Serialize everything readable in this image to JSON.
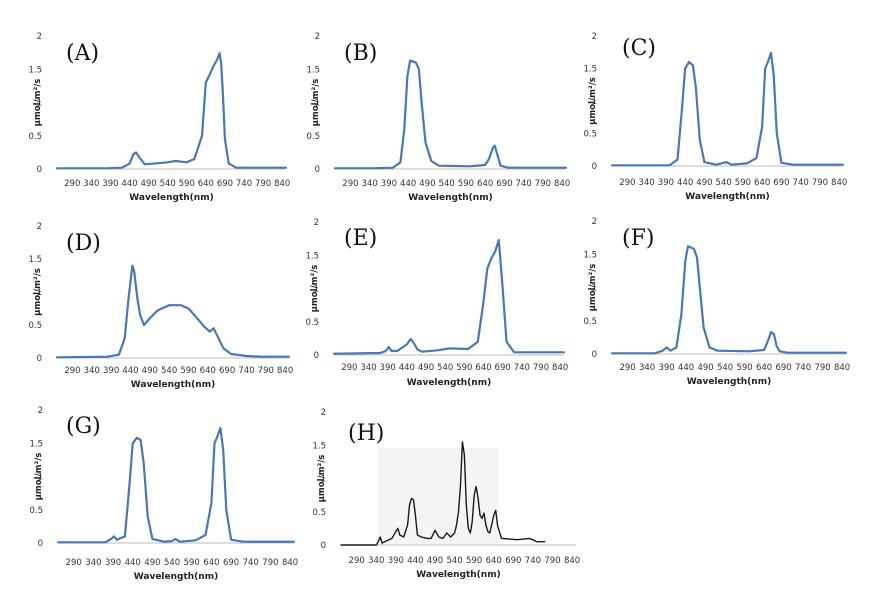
{
  "chart_data": [
    {
      "type": "line",
      "panel_label": "(A)",
      "xlabel": "Wavelength(nm)",
      "ylabel": "μmol/m²/s",
      "xlim": [
        250,
        850
      ],
      "ylim": [
        0,
        2
      ],
      "xticks": [
        290,
        340,
        390,
        440,
        490,
        540,
        590,
        640,
        690,
        740,
        790,
        840
      ],
      "yticks": [
        "0",
        "0.5",
        "1",
        "1.5",
        "2"
      ],
      "series": [
        {
          "color": "#4a78b5",
          "x": [
            250,
            300,
            380,
            420,
            440,
            450,
            457,
            465,
            480,
            500,
            540,
            560,
            590,
            610,
            630,
            640,
            650,
            660,
            670,
            676,
            680,
            685,
            690,
            700,
            720,
            800,
            850
          ],
          "y": [
            0.01,
            0.01,
            0.01,
            0.02,
            0.08,
            0.22,
            0.25,
            0.18,
            0.07,
            0.08,
            0.1,
            0.12,
            0.1,
            0.15,
            0.5,
            1.3,
            1.42,
            1.55,
            1.65,
            1.74,
            1.6,
            1.1,
            0.45,
            0.08,
            0.02,
            0.02,
            0.02
          ]
        }
      ]
    },
    {
      "type": "line",
      "panel_label": "(B)",
      "xlabel": "Wavelength(nm)",
      "ylabel": "μmol/m²/s",
      "xlim": [
        250,
        850
      ],
      "ylim": [
        0,
        2
      ],
      "xticks": [
        290,
        340,
        390,
        440,
        490,
        540,
        590,
        640,
        690,
        740,
        790,
        840
      ],
      "yticks": [
        "0",
        "0.5",
        "1",
        "1.5",
        "2"
      ],
      "series": [
        {
          "color": "#4a78b5",
          "x": [
            250,
            350,
            400,
            420,
            430,
            438,
            445,
            460,
            468,
            475,
            485,
            500,
            520,
            600,
            640,
            650,
            660,
            665,
            670,
            680,
            700,
            850
          ],
          "y": [
            0.01,
            0.01,
            0.02,
            0.1,
            0.6,
            1.4,
            1.63,
            1.6,
            1.5,
            1.0,
            0.4,
            0.12,
            0.05,
            0.04,
            0.06,
            0.15,
            0.32,
            0.35,
            0.25,
            0.05,
            0.02,
            0.02
          ]
        }
      ]
    },
    {
      "type": "line",
      "panel_label": "(C)",
      "xlabel": "Wavelength(nm)",
      "ylabel": "μmol/m²/s",
      "xlim": [
        250,
        850
      ],
      "ylim": [
        0,
        2
      ],
      "xticks": [
        290,
        340,
        390,
        440,
        490,
        540,
        590,
        640,
        690,
        740,
        790,
        840
      ],
      "yticks": [
        "0",
        "0.5",
        "1",
        "1.5",
        "2"
      ],
      "series": [
        {
          "color": "#4a78b5",
          "x": [
            250,
            400,
            420,
            432,
            440,
            450,
            460,
            468,
            478,
            490,
            520,
            548,
            560,
            600,
            625,
            640,
            648,
            655,
            663,
            670,
            678,
            690,
            720,
            850
          ],
          "y": [
            0.01,
            0.01,
            0.1,
            0.9,
            1.5,
            1.6,
            1.55,
            1.2,
            0.4,
            0.06,
            0.02,
            0.06,
            0.02,
            0.04,
            0.12,
            0.6,
            1.5,
            1.6,
            1.74,
            1.4,
            0.5,
            0.05,
            0.02,
            0.02
          ]
        }
      ]
    },
    {
      "type": "line",
      "panel_label": "(D)",
      "xlabel": "Wavelength(nm)",
      "ylabel": "μmol/m²/s",
      "xlim": [
        250,
        850
      ],
      "ylim": [
        0,
        2
      ],
      "xticks": [
        290,
        340,
        390,
        440,
        490,
        540,
        590,
        640,
        690,
        740,
        790,
        840
      ],
      "yticks": [
        "0",
        "0.5",
        "1",
        "1.5",
        "2"
      ],
      "series": [
        {
          "color": "#4a78b5",
          "x": [
            250,
            380,
            410,
            425,
            435,
            445,
            450,
            458,
            465,
            475,
            490,
            510,
            540,
            570,
            590,
            610,
            630,
            645,
            655,
            665,
            680,
            700,
            740,
            780,
            820,
            850
          ],
          "y": [
            0.01,
            0.02,
            0.05,
            0.3,
            0.9,
            1.4,
            1.3,
            0.9,
            0.65,
            0.5,
            0.6,
            0.72,
            0.8,
            0.8,
            0.75,
            0.62,
            0.48,
            0.4,
            0.45,
            0.33,
            0.15,
            0.06,
            0.03,
            0.02,
            0.02,
            0.02
          ]
        }
      ]
    },
    {
      "type": "line",
      "panel_label": "(E)",
      "xlabel": "Wavelength(nm)",
      "ylabel": "μmol/m²/s",
      "xlim": [
        250,
        850
      ],
      "ylim": [
        0,
        2
      ],
      "xticks": [
        290,
        340,
        390,
        440,
        490,
        540,
        590,
        640,
        690,
        740,
        790,
        840
      ],
      "yticks": [
        "0",
        "0.5",
        "1",
        "1.5",
        "2"
      ],
      "series": [
        {
          "color": "#4a78b5",
          "x": [
            250,
            370,
            385,
            393,
            400,
            415,
            440,
            450,
            458,
            468,
            480,
            520,
            550,
            600,
            625,
            640,
            650,
            660,
            670,
            680,
            690,
            700,
            720,
            850
          ],
          "y": [
            0.02,
            0.03,
            0.06,
            0.12,
            0.06,
            0.06,
            0.16,
            0.24,
            0.18,
            0.08,
            0.05,
            0.07,
            0.1,
            0.09,
            0.2,
            0.8,
            1.3,
            1.45,
            1.55,
            1.73,
            1.0,
            0.2,
            0.04,
            0.04
          ]
        }
      ]
    },
    {
      "type": "line",
      "panel_label": "(F)",
      "xlabel": "Wavelength(nm)",
      "ylabel": "μmol/m²/s",
      "xlim": [
        250,
        850
      ],
      "ylim": [
        0,
        2
      ],
      "xticks": [
        290,
        340,
        390,
        440,
        490,
        540,
        590,
        640,
        690,
        740,
        790,
        840
      ],
      "yticks": [
        "0",
        "0.5",
        "1",
        "1.5",
        "2"
      ],
      "series": [
        {
          "color": "#4a78b5",
          "x": [
            250,
            360,
            380,
            390,
            400,
            415,
            428,
            438,
            445,
            460,
            468,
            475,
            485,
            500,
            520,
            600,
            640,
            650,
            658,
            665,
            672,
            680,
            700,
            850
          ],
          "y": [
            0.01,
            0.01,
            0.05,
            0.1,
            0.05,
            0.1,
            0.6,
            1.4,
            1.62,
            1.58,
            1.45,
            1.0,
            0.4,
            0.1,
            0.05,
            0.04,
            0.06,
            0.2,
            0.33,
            0.3,
            0.12,
            0.04,
            0.02,
            0.02
          ]
        }
      ]
    },
    {
      "type": "line",
      "panel_label": "(G)",
      "xlabel": "Wavelength(nm)",
      "ylabel": "μmol/m²/s",
      "xlim": [
        250,
        850
      ],
      "ylim": [
        0,
        2
      ],
      "xticks": [
        290,
        340,
        390,
        440,
        490,
        540,
        590,
        640,
        690,
        740,
        790,
        840
      ],
      "yticks": [
        "0",
        "0.5",
        "1",
        "1.5",
        "2"
      ],
      "series": [
        {
          "color": "#4a78b5",
          "x": [
            250,
            370,
            385,
            392,
            400,
            420,
            432,
            440,
            450,
            460,
            468,
            478,
            490,
            520,
            540,
            548,
            560,
            600,
            625,
            640,
            648,
            655,
            663,
            670,
            678,
            690,
            720,
            850
          ],
          "y": [
            0.01,
            0.01,
            0.06,
            0.1,
            0.05,
            0.1,
            0.9,
            1.5,
            1.58,
            1.55,
            1.2,
            0.4,
            0.06,
            0.02,
            0.03,
            0.06,
            0.02,
            0.04,
            0.12,
            0.6,
            1.5,
            1.6,
            1.73,
            1.4,
            0.5,
            0.05,
            0.02,
            0.02
          ]
        }
      ]
    },
    {
      "type": "line",
      "panel_label": "(H)",
      "xlabel": "Wavelength(nm)",
      "ylabel": "μmol/m²/s",
      "xlim": [
        250,
        850
      ],
      "ylim": [
        0,
        2
      ],
      "xticks": [
        290,
        340,
        390,
        440,
        490,
        540,
        590,
        640,
        690,
        740,
        790,
        840
      ],
      "yticks": [
        "0",
        "0.5",
        "1",
        "1.5",
        "2"
      ],
      "series": [
        {
          "color": "#1a1a1a",
          "x": [
            250,
            340,
            345,
            350,
            355,
            380,
            390,
            395,
            400,
            410,
            420,
            425,
            430,
            435,
            440,
            445,
            455,
            470,
            480,
            490,
            500,
            510,
            520,
            530,
            540,
            545,
            550,
            555,
            560,
            565,
            570,
            575,
            580,
            585,
            590,
            595,
            600,
            605,
            610,
            615,
            620,
            625,
            630,
            640,
            645,
            650,
            660,
            700,
            730,
            740,
            750,
            760,
            770
          ],
          "y": [
            0,
            0,
            0.05,
            0.12,
            0.03,
            0.1,
            0.2,
            0.25,
            0.15,
            0.12,
            0.3,
            0.6,
            0.7,
            0.68,
            0.45,
            0.15,
            0.12,
            0.1,
            0.1,
            0.22,
            0.12,
            0.1,
            0.18,
            0.12,
            0.18,
            0.3,
            0.5,
            0.9,
            1.55,
            1.35,
            0.6,
            0.25,
            0.18,
            0.35,
            0.75,
            0.88,
            0.7,
            0.45,
            0.4,
            0.48,
            0.3,
            0.2,
            0.18,
            0.45,
            0.52,
            0.28,
            0.1,
            0.08,
            0.1,
            0.08,
            0.05,
            0.05,
            0.05
          ]
        }
      ]
    }
  ]
}
